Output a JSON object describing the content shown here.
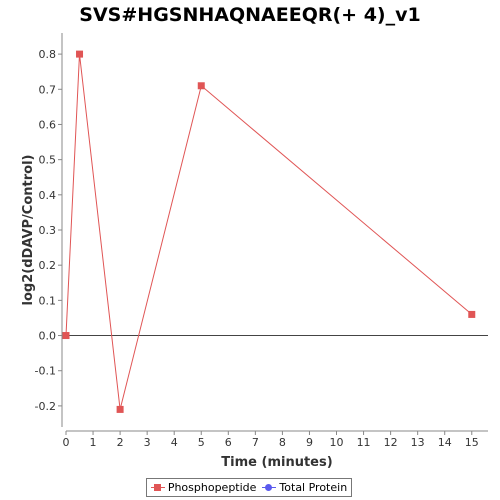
{
  "chart_data": {
    "type": "line",
    "title": "SVS#HGSNHAQNAEEQR(+ 4)_v1",
    "xlabel": "Time (minutes)",
    "ylabel": "log2(dDAVP/Control)",
    "xlim": [
      0,
      15.6
    ],
    "ylim": [
      -0.26,
      0.86
    ],
    "x_ticks": [
      0,
      1,
      2,
      3,
      4,
      5,
      6,
      7,
      8,
      9,
      10,
      11,
      12,
      13,
      14,
      15
    ],
    "y_ticks": [
      -0.2,
      -0.1,
      0.0,
      0.1,
      0.2,
      0.3,
      0.4,
      0.5,
      0.6,
      0.7,
      0.8
    ],
    "y_tick_labels": [
      "-0.2",
      "-0.1",
      "0.0",
      "0.1",
      "0.2",
      "0.3",
      "0.4",
      "0.5",
      "0.6",
      "0.7",
      "0.8"
    ],
    "grid": false,
    "zero_line": true,
    "legend_position": "bottom-center",
    "series": [
      {
        "name": "Phosphopeptide",
        "color": "#e05555",
        "marker": "square",
        "x": [
          0,
          0.5,
          2,
          5,
          15
        ],
        "y": [
          0.0,
          0.8,
          -0.21,
          0.71,
          0.06
        ]
      }
    ],
    "legend": [
      {
        "label": "Phosphopeptide",
        "color": "#e05555",
        "marker": "square"
      },
      {
        "label": "Total Protein",
        "color": "#5a5aee",
        "marker": "circle"
      }
    ]
  }
}
